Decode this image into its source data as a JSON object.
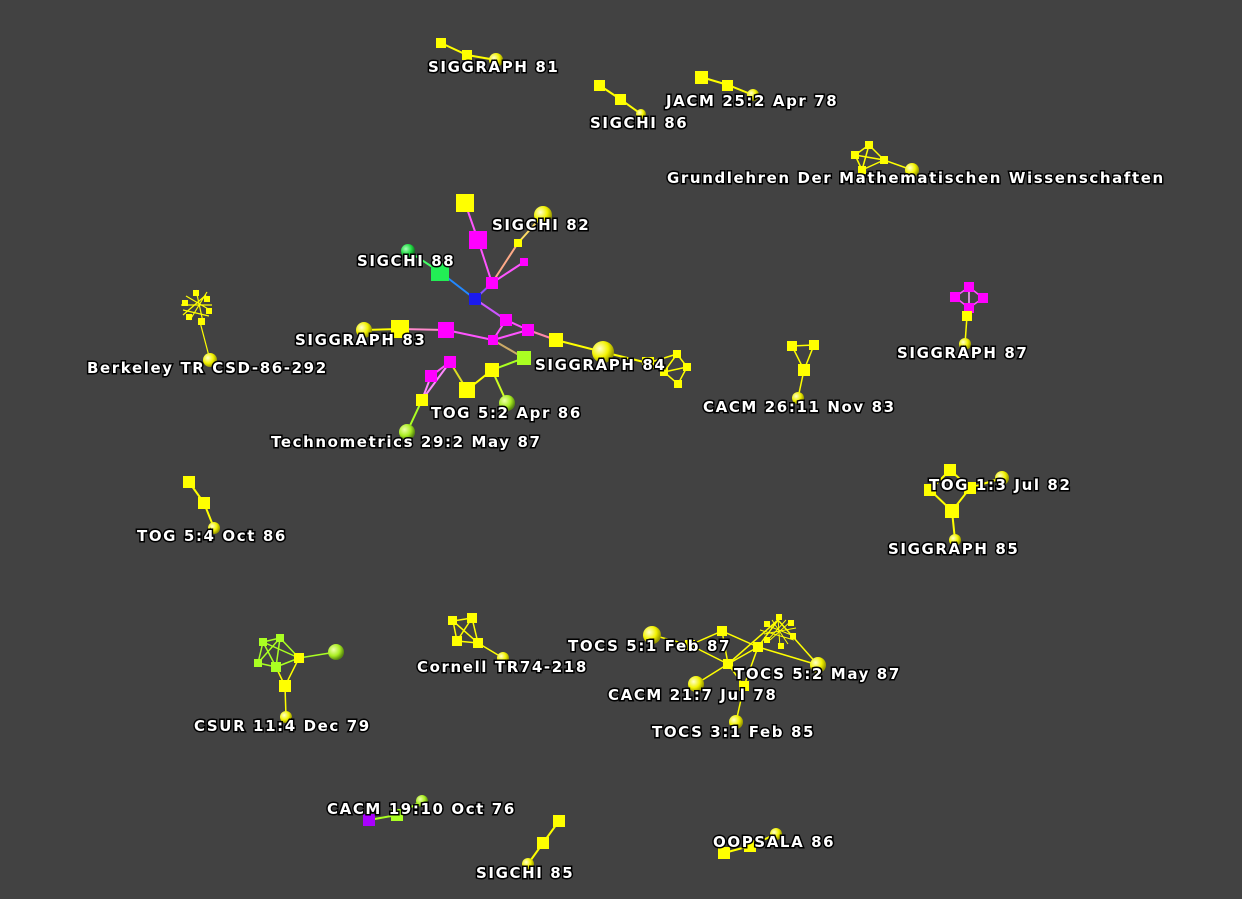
{
  "colors": {
    "background": "#424242",
    "yellow": "#ffff00",
    "magenta": "#ff00ff",
    "lime": "#aaff22",
    "green": "#22ee55",
    "blue": "#1a1aee",
    "purple": "#aa00ff",
    "label": "#ffffff"
  },
  "labels": {
    "siggraph_81": "SIGGRAPH 81",
    "sigchi_86": "SIGCHI 86",
    "jacm_25_2": "JACM 25:2 Apr 78",
    "grundlehren": "Grundlehren Der Mathematischen Wissenschaften",
    "sigchi_82": "SIGCHI 82",
    "sigchi_88": "SIGCHI 88",
    "siggraph_83": "SIGGRAPH 83",
    "berkeley_tr": "Berkeley TR CSD-86-292",
    "siggraph_84": "SIGGRAPH 84",
    "tog_5_2": "TOG 5:2 Apr 86",
    "technometrics": "Technometrics 29:2 May 87",
    "siggraph_87": "SIGGRAPH 87",
    "cacm_26_11": "CACM 26:11 Nov 83",
    "tog_1_3": "TOG 1:3 Jul 82",
    "siggraph_85": "SIGGRAPH 85",
    "tog_5_4": "TOG 5:4 Oct 86",
    "tocs_5_1": "TOCS 5:1 Feb 87",
    "tocs_5_2": "TOCS 5:2 May 87",
    "cacm_21_7": "CACM 21:7 Jul 78",
    "cornell_tr": "Cornell TR74-218",
    "tocs_3_1": "TOCS 3:1 Feb 85",
    "csur_11_4": "CSUR 11:4 Dec 79",
    "cacm_19_10": "CACM 19:10 Oct 76",
    "oopsala_86": "OOPSALA 86",
    "sigchi_85": "SIGCHI 85"
  }
}
